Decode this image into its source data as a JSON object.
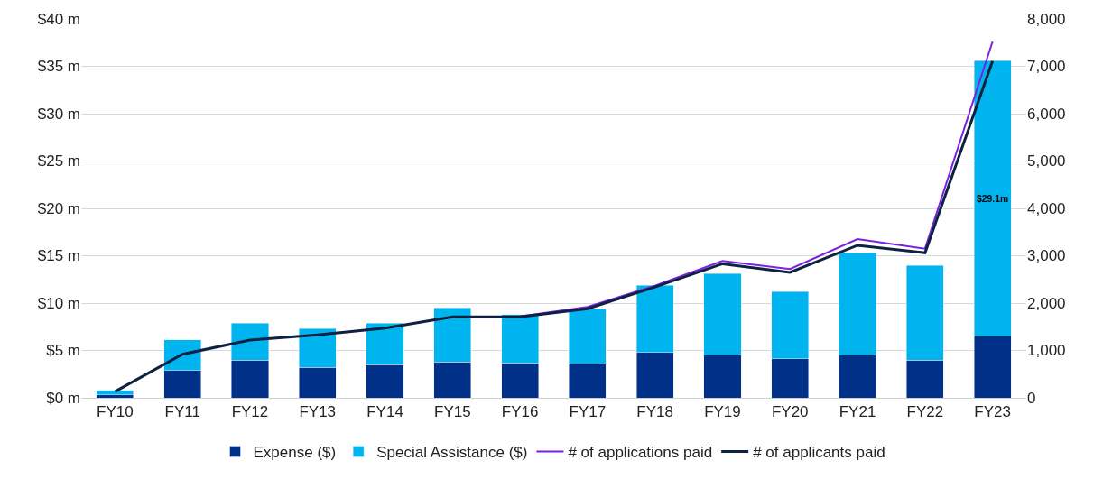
{
  "chart_data": {
    "type": "bar",
    "stacked": true,
    "categories": [
      "FY10",
      "FY11",
      "FY12",
      "FY13",
      "FY14",
      "FY15",
      "FY16",
      "FY17",
      "FY18",
      "FY19",
      "FY20",
      "FY21",
      "FY22",
      "FY23"
    ],
    "series": [
      {
        "name": "Expense ($)",
        "color": "#003087",
        "values": [
          0.3,
          2.9,
          4.0,
          3.2,
          3.5,
          3.8,
          3.7,
          3.6,
          4.8,
          4.5,
          4.1,
          4.5,
          4.0,
          6.5
        ]
      },
      {
        "name": "Special Assistance ($)",
        "color": "#00b5ef",
        "values": [
          0.5,
          3.2,
          3.9,
          4.1,
          4.4,
          5.7,
          5.1,
          5.8,
          7.1,
          8.6,
          7.1,
          10.8,
          10.0,
          29.1
        ],
        "value_labels": [
          null,
          null,
          null,
          null,
          null,
          null,
          null,
          null,
          null,
          null,
          null,
          null,
          null,
          "$29.1m"
        ]
      },
      {
        "name": "# of applications paid",
        "type": "line",
        "axis": "y2",
        "color": "#7b1fe0",
        "values": [
          null,
          null,
          null,
          null,
          null,
          null,
          1720,
          1920,
          2370,
          2890,
          2720,
          3350,
          3150,
          7520
        ]
      },
      {
        "name": "# of applicants paid",
        "type": "line",
        "axis": "y2",
        "color": "#0d2240",
        "values": [
          130,
          920,
          1220,
          1330,
          1470,
          1710,
          1710,
          1880,
          2340,
          2830,
          2650,
          3220,
          3060,
          7110
        ]
      }
    ],
    "ylim": [
      0,
      40
    ],
    "yticks": [
      {
        "value": 0,
        "label": "$0 m"
      },
      {
        "value": 5,
        "label": "$5 m"
      },
      {
        "value": 10,
        "label": "$10 m"
      },
      {
        "value": 15,
        "label": "$15 m"
      },
      {
        "value": 20,
        "label": "$20 m"
      },
      {
        "value": 25,
        "label": "$25 m"
      },
      {
        "value": 30,
        "label": "$30 m"
      },
      {
        "value": 35,
        "label": "$35 m"
      },
      {
        "value": 40,
        "label": "$40 m"
      }
    ],
    "y2lim": [
      0,
      8000
    ],
    "y2ticks": [
      0,
      {
        "value": 1000,
        "label": "1,000"
      },
      {
        "value": 2000,
        "label": "2,000"
      },
      {
        "value": 3000,
        "label": "3,000"
      },
      {
        "value": 4000,
        "label": "4,000"
      },
      {
        "value": 5000,
        "label": "5,000"
      },
      {
        "value": 6000,
        "label": "6,000"
      },
      {
        "value": 7000,
        "label": "7,000"
      },
      {
        "value": 8000,
        "label": "8,000"
      }
    ],
    "grid": "y",
    "legend": "bottom",
    "marker": "none",
    "line_style": "solid"
  }
}
